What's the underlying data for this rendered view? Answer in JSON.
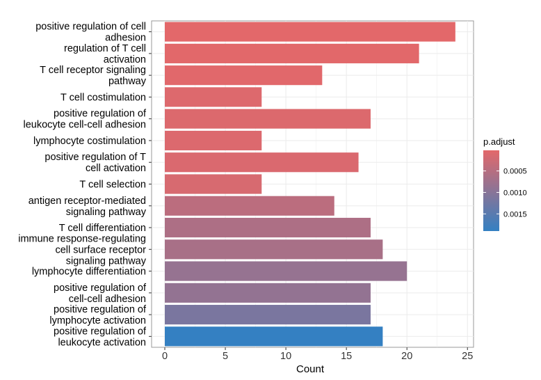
{
  "chart_data": {
    "type": "bar",
    "orientation": "horizontal",
    "xlabel": "Count",
    "xlim": [
      0,
      25
    ],
    "x_ticks": [
      "0",
      "5",
      "10",
      "15",
      "20",
      "25"
    ],
    "grid": true,
    "categories": [
      [
        "positive regulation of cell",
        "adhesion"
      ],
      [
        "regulation of T cell",
        "activation"
      ],
      [
        "T cell receptor signaling",
        "pathway"
      ],
      [
        "T cell costimulation"
      ],
      [
        "positive regulation of",
        "leukocyte cell-cell adhesion"
      ],
      [
        "lymphocyte costimulation"
      ],
      [
        "positive regulation of T",
        "cell activation"
      ],
      [
        "T cell selection"
      ],
      [
        "antigen receptor-mediated",
        "signaling pathway"
      ],
      [
        "T cell differentiation"
      ],
      [
        "immune response-regulating",
        "cell surface receptor",
        "signaling pathway"
      ],
      [
        "lymphocyte differentiation"
      ],
      [
        "positive regulation of",
        "cell-cell adhesion"
      ],
      [
        "positive regulation of",
        "lymphocyte activation"
      ],
      [
        "positive regulation of",
        "leukocyte activation"
      ]
    ],
    "values": [
      24,
      21,
      13,
      8,
      17,
      8,
      16,
      8,
      14,
      17,
      18,
      20,
      17,
      17,
      18
    ],
    "p_adjust": [
      2e-05,
      3e-05,
      4e-05,
      8e-05,
      9e-05,
      0.0001,
      0.00012,
      0.00015,
      0.00045,
      0.0006,
      0.00065,
      0.00085,
      0.00088,
      0.00115,
      0.0019
    ],
    "legend": {
      "title": "p.adjust",
      "position": "right",
      "range": [
        2e-05,
        0.0019
      ],
      "ticks": [
        {
          "value": 0.0005,
          "label": "0.0005"
        },
        {
          "value": 0.001,
          "label": "0.0010"
        },
        {
          "value": 0.0015,
          "label": "0.0015"
        }
      ],
      "color_low": "#e3686a",
      "color_high": "#3480c2"
    }
  }
}
